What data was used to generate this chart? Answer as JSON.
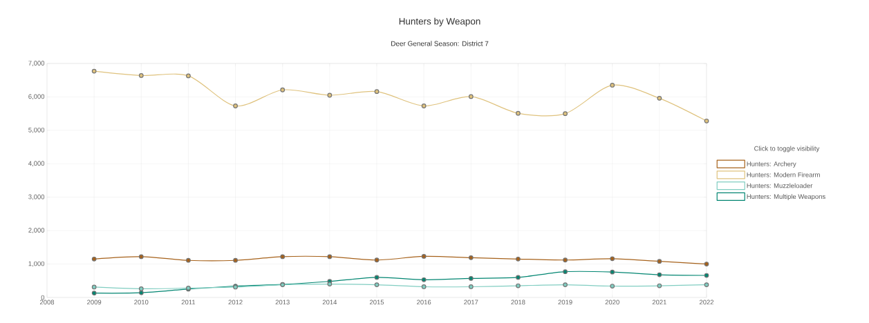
{
  "chart_data": {
    "type": "line",
    "title": "Hunters by Weapon",
    "subtitle": "Deer General Season: District 7",
    "legend_title": "Click to toggle visibility",
    "x": [
      2009,
      2010,
      2011,
      2012,
      2013,
      2014,
      2015,
      2016,
      2017,
      2018,
      2019,
      2020,
      2021,
      2022
    ],
    "series": [
      {
        "name": "Hunters: Archery",
        "color": "#a6611a",
        "values": [
          1150,
          1220,
          1110,
          1110,
          1220,
          1220,
          1120,
          1230,
          1190,
          1150,
          1120,
          1160,
          1080,
          1000
        ]
      },
      {
        "name": "Hunters: Modern Firearm",
        "color": "#dfc27d",
        "values": [
          6770,
          6640,
          6630,
          5730,
          6210,
          6050,
          6160,
          5730,
          6010,
          5510,
          5500,
          6350,
          5960,
          5280
        ]
      },
      {
        "name": "Hunters: Muzzleloader",
        "color": "#80cdc1",
        "values": [
          310,
          260,
          280,
          310,
          380,
          400,
          380,
          320,
          320,
          350,
          380,
          340,
          350,
          380
        ]
      },
      {
        "name": "Hunters: Multiple Weapons",
        "color": "#018571",
        "values": [
          130,
          140,
          250,
          340,
          390,
          480,
          600,
          530,
          570,
          600,
          770,
          760,
          680,
          660
        ]
      }
    ],
    "xlim": [
      2008,
      2022
    ],
    "xticks": [
      2008,
      2009,
      2010,
      2011,
      2012,
      2013,
      2014,
      2015,
      2016,
      2017,
      2018,
      2019,
      2020,
      2021,
      2022
    ],
    "ylim": [
      0,
      7000
    ],
    "yticks": [
      0,
      {
        "value": 1000,
        "label": "1,000"
      },
      {
        "value": 2000,
        "label": "2,000"
      },
      {
        "value": 3000,
        "label": "3,000"
      },
      {
        "value": 4000,
        "label": "4,000"
      },
      {
        "value": 5000,
        "label": "5,000"
      },
      {
        "value": 6000,
        "label": "6,000"
      },
      {
        "value": 7000,
        "label": "7,000"
      }
    ],
    "grid": true,
    "legend": "right",
    "marker": "circle",
    "line_style": "solid"
  }
}
